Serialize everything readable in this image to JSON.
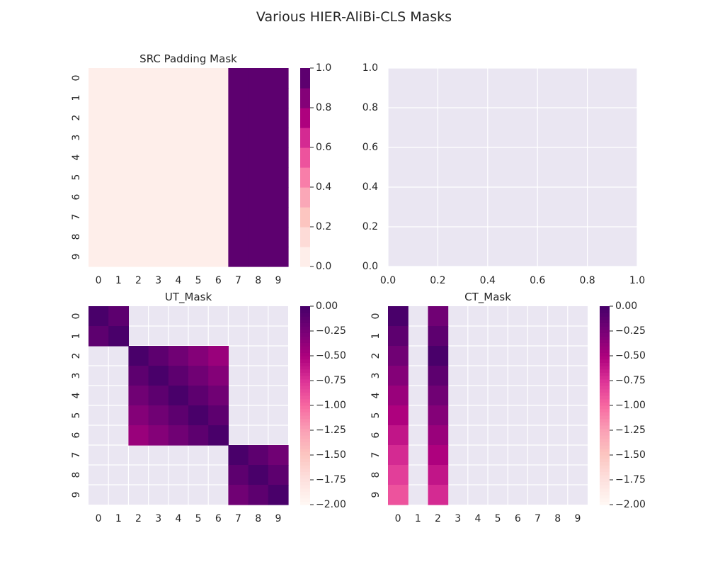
{
  "figure": {
    "title": "Various HIER-AliBi-CLS Masks"
  },
  "colors": {
    "axes_bg": "#eae6f2",
    "grid": "#ffffff",
    "text": "#262626"
  },
  "chart_data": [
    {
      "type": "heatmap",
      "title": "SRC Padding Mask",
      "x_ticks": [
        "0",
        "1",
        "2",
        "3",
        "4",
        "5",
        "6",
        "7",
        "8",
        "9"
      ],
      "y_ticks": [
        "0",
        "1",
        "2",
        "3",
        "4",
        "5",
        "6",
        "7",
        "8",
        "9"
      ],
      "colormap": "RdPu",
      "colorbar": {
        "min": 0,
        "max": 1,
        "ticks": [
          "0.0",
          "0.2",
          "0.4",
          "0.6",
          "0.8",
          "1.0"
        ],
        "discrete_levels": 10
      },
      "grid": false,
      "values": [
        [
          0,
          0,
          0,
          0,
          0,
          0,
          0,
          1,
          1,
          1
        ],
        [
          0,
          0,
          0,
          0,
          0,
          0,
          0,
          1,
          1,
          1
        ],
        [
          0,
          0,
          0,
          0,
          0,
          0,
          0,
          1,
          1,
          1
        ],
        [
          0,
          0,
          0,
          0,
          0,
          0,
          0,
          1,
          1,
          1
        ],
        [
          0,
          0,
          0,
          0,
          0,
          0,
          0,
          1,
          1,
          1
        ],
        [
          0,
          0,
          0,
          0,
          0,
          0,
          0,
          1,
          1,
          1
        ],
        [
          0,
          0,
          0,
          0,
          0,
          0,
          0,
          1,
          1,
          1
        ],
        [
          0,
          0,
          0,
          0,
          0,
          0,
          0,
          1,
          1,
          1
        ],
        [
          0,
          0,
          0,
          0,
          0,
          0,
          0,
          1,
          1,
          1
        ],
        [
          0,
          0,
          0,
          0,
          0,
          0,
          0,
          1,
          1,
          1
        ]
      ]
    },
    {
      "type": "line",
      "title": "",
      "empty": true,
      "x_ticks": [
        "0.0",
        "0.2",
        "0.4",
        "0.6",
        "0.8",
        "1.0"
      ],
      "y_ticks": [
        "0.0",
        "0.2",
        "0.4",
        "0.6",
        "0.8",
        "1.0"
      ],
      "xlim": [
        0,
        1
      ],
      "ylim": [
        0,
        1
      ],
      "grid": true,
      "series": []
    },
    {
      "type": "heatmap",
      "title": "UT_Mask",
      "x_ticks": [
        "0",
        "1",
        "2",
        "3",
        "4",
        "5",
        "6",
        "7",
        "8",
        "9"
      ],
      "y_ticks": [
        "0",
        "1",
        "2",
        "3",
        "4",
        "5",
        "6",
        "7",
        "8",
        "9"
      ],
      "colormap": "RdPu",
      "colorbar": {
        "min": -2,
        "max": 0,
        "ticks": [
          "0.00",
          "−0.25",
          "−0.50",
          "−0.75",
          "−1.00",
          "−1.25",
          "−1.50",
          "−1.75",
          "−2.00"
        ]
      },
      "grid": true,
      "masked_cells": "null",
      "values": [
        [
          0.0,
          -0.1,
          null,
          null,
          null,
          null,
          null,
          null,
          null,
          null
        ],
        [
          -0.1,
          0.0,
          null,
          null,
          null,
          null,
          null,
          null,
          null,
          null
        ],
        [
          null,
          null,
          0.0,
          -0.1,
          -0.2,
          -0.3,
          -0.4,
          null,
          null,
          null
        ],
        [
          null,
          null,
          -0.1,
          0.0,
          -0.1,
          -0.2,
          -0.3,
          null,
          null,
          null
        ],
        [
          null,
          null,
          -0.2,
          -0.1,
          0.0,
          -0.1,
          -0.2,
          null,
          null,
          null
        ],
        [
          null,
          null,
          -0.3,
          -0.2,
          -0.1,
          0.0,
          -0.1,
          null,
          null,
          null
        ],
        [
          null,
          null,
          -0.4,
          -0.3,
          -0.2,
          -0.1,
          0.0,
          null,
          null,
          null
        ],
        [
          null,
          null,
          null,
          null,
          null,
          null,
          null,
          0.0,
          -0.1,
          -0.2
        ],
        [
          null,
          null,
          null,
          null,
          null,
          null,
          null,
          -0.1,
          0.0,
          -0.1
        ],
        [
          null,
          null,
          null,
          null,
          null,
          null,
          null,
          -0.2,
          -0.1,
          0.0
        ]
      ]
    },
    {
      "type": "heatmap",
      "title": "CT_Mask",
      "x_ticks": [
        "0",
        "1",
        "2",
        "3",
        "4",
        "5",
        "6",
        "7",
        "8",
        "9"
      ],
      "y_ticks": [
        "0",
        "1",
        "2",
        "3",
        "4",
        "5",
        "6",
        "7",
        "8",
        "9"
      ],
      "colormap": "RdPu",
      "colorbar": {
        "min": -2,
        "max": 0,
        "ticks": [
          "0.00",
          "−0.25",
          "−0.50",
          "−0.75",
          "−1.00",
          "−1.25",
          "−1.50",
          "−1.75",
          "−2.00"
        ]
      },
      "grid": true,
      "masked_cells": "null",
      "values": [
        [
          0.0,
          null,
          -0.2,
          null,
          null,
          null,
          null,
          null,
          null,
          null
        ],
        [
          -0.1,
          null,
          -0.1,
          null,
          null,
          null,
          null,
          null,
          null,
          null
        ],
        [
          -0.2,
          null,
          0.0,
          null,
          null,
          null,
          null,
          null,
          null,
          null
        ],
        [
          -0.3,
          null,
          -0.1,
          null,
          null,
          null,
          null,
          null,
          null,
          null
        ],
        [
          -0.4,
          null,
          -0.2,
          null,
          null,
          null,
          null,
          null,
          null,
          null
        ],
        [
          -0.5,
          null,
          -0.3,
          null,
          null,
          null,
          null,
          null,
          null,
          null
        ],
        [
          -0.6,
          null,
          -0.4,
          null,
          null,
          null,
          null,
          null,
          null,
          null
        ],
        [
          -0.7,
          null,
          -0.5,
          null,
          null,
          null,
          null,
          null,
          null,
          null
        ],
        [
          -0.8,
          null,
          -0.6,
          null,
          null,
          null,
          null,
          null,
          null,
          null
        ],
        [
          -0.9,
          null,
          -0.7,
          null,
          null,
          null,
          null,
          null,
          null,
          null
        ]
      ]
    }
  ]
}
